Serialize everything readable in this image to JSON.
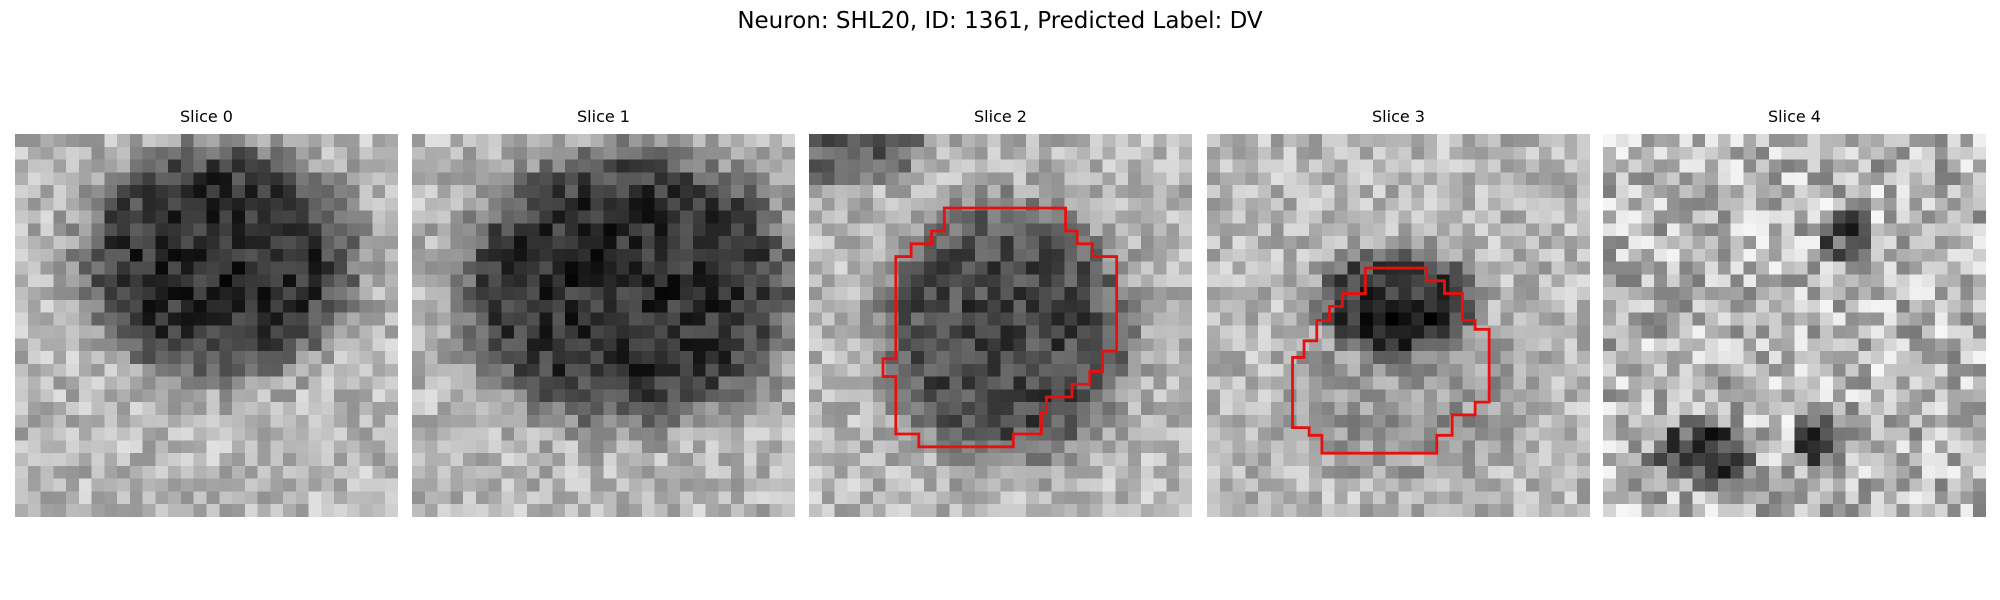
{
  "title": "Neuron: SHL20, ID: 1361, Predicted Label: DV",
  "panels": [
    {
      "title": "Slice 0"
    },
    {
      "title": "Slice 1"
    },
    {
      "title": "Slice 2"
    },
    {
      "title": "Slice 3"
    },
    {
      "title": "Slice 4"
    }
  ]
}
